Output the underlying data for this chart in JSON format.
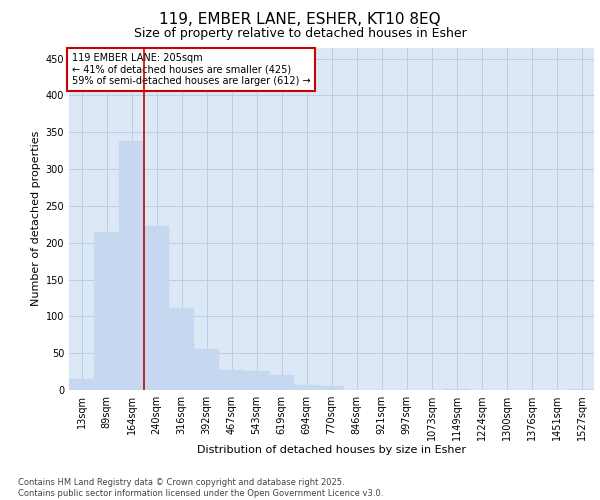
{
  "title1": "119, EMBER LANE, ESHER, KT10 8EQ",
  "title2": "Size of property relative to detached houses in Esher",
  "xlabel": "Distribution of detached houses by size in Esher",
  "ylabel": "Number of detached properties",
  "categories": [
    "13sqm",
    "89sqm",
    "164sqm",
    "240sqm",
    "316sqm",
    "392sqm",
    "467sqm",
    "543sqm",
    "619sqm",
    "694sqm",
    "770sqm",
    "846sqm",
    "921sqm",
    "997sqm",
    "1073sqm",
    "1149sqm",
    "1224sqm",
    "1300sqm",
    "1376sqm",
    "1451sqm",
    "1527sqm"
  ],
  "values": [
    15,
    215,
    338,
    222,
    112,
    55,
    27,
    26,
    20,
    7,
    6,
    0,
    0,
    0,
    0,
    1,
    0,
    0,
    0,
    0,
    2
  ],
  "bar_color": "#c5d8f0",
  "bar_edge_color": "#c5d8f0",
  "grid_color": "#b8cfe8",
  "bg_color": "#dce8f5",
  "vline_x": 2.5,
  "annotation_text": "119 EMBER LANE: 205sqm\n← 41% of detached houses are smaller (425)\n59% of semi-detached houses are larger (612) →",
  "annotation_box_color": "#ffffff",
  "annotation_box_edge": "#cc0000",
  "vline_color": "#cc0000",
  "footer_line1": "Contains HM Land Registry data © Crown copyright and database right 2025.",
  "footer_line2": "Contains public sector information licensed under the Open Government Licence v3.0.",
  "ylim": [
    0,
    465
  ],
  "yticks": [
    0,
    50,
    100,
    150,
    200,
    250,
    300,
    350,
    400,
    450
  ],
  "title1_fontsize": 11,
  "title2_fontsize": 9,
  "xlabel_fontsize": 8,
  "ylabel_fontsize": 8,
  "tick_fontsize": 7,
  "footer_fontsize": 6,
  "annot_fontsize": 7
}
